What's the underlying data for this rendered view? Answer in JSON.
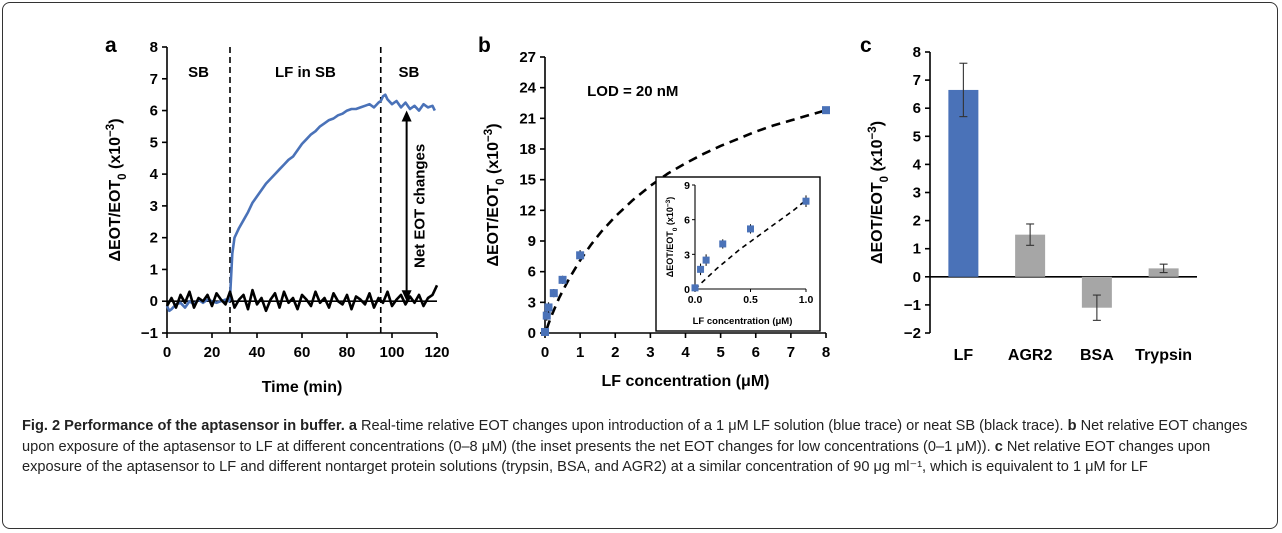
{
  "chart_data": [
    {
      "panel": "a",
      "type": "line",
      "xlabel": "Time (min)",
      "ylabel": "ΔEOT/EOT₀ (x10⁻³)",
      "xlim": [
        0,
        120
      ],
      "ylim": [
        -1,
        8
      ],
      "xticks": [
        0,
        20,
        40,
        60,
        80,
        100,
        120
      ],
      "yticks": [
        -1,
        0,
        1,
        2,
        3,
        4,
        5,
        6,
        7,
        8
      ],
      "regions": [
        "SB",
        "LF in SB",
        "SB"
      ],
      "region_boundaries": [
        28,
        95
      ],
      "annotation": "Net EOT changes",
      "series": [
        {
          "color": "#4a72b8",
          "x": [
            0,
            1,
            2,
            4,
            6,
            8,
            10,
            12,
            14,
            16,
            18,
            20,
            22,
            24,
            26,
            27.5,
            28,
            29,
            30,
            32,
            34,
            36,
            38,
            40,
            42,
            44,
            46,
            48,
            50,
            52,
            54,
            56,
            58,
            60,
            62,
            64,
            66,
            68,
            70,
            72,
            74,
            76,
            78,
            80,
            82,
            84,
            86,
            88,
            90,
            92,
            94,
            95,
            96,
            97,
            98,
            100,
            102,
            104,
            106,
            108,
            110,
            112,
            114,
            116,
            118,
            119
          ],
          "y": [
            -0.15,
            -0.3,
            -0.25,
            -0.1,
            -0.05,
            -0.2,
            0.0,
            -0.1,
            0.05,
            -0.05,
            0.05,
            0.0,
            -0.05,
            0.0,
            0.05,
            0.0,
            0.1,
            1.5,
            2.0,
            2.3,
            2.55,
            2.8,
            3.1,
            3.3,
            3.5,
            3.7,
            3.85,
            4.0,
            4.15,
            4.3,
            4.45,
            4.55,
            4.75,
            4.95,
            5.1,
            5.25,
            5.35,
            5.5,
            5.6,
            5.7,
            5.75,
            5.85,
            5.9,
            6.0,
            6.05,
            6.05,
            6.1,
            6.15,
            6.2,
            6.1,
            6.25,
            6.3,
            6.45,
            6.5,
            6.35,
            6.2,
            6.3,
            6.1,
            6.25,
            6.05,
            6.15,
            6.0,
            6.2,
            6.1,
            6.15,
            6.0
          ]
        },
        {
          "color": "#000000",
          "x": [
            0,
            2,
            4,
            6,
            8,
            10,
            12,
            14,
            16,
            18,
            20,
            22,
            24,
            26,
            28,
            30,
            32,
            34,
            36,
            38,
            40,
            42,
            44,
            46,
            48,
            50,
            52,
            54,
            56,
            58,
            60,
            62,
            64,
            66,
            68,
            70,
            72,
            74,
            76,
            78,
            80,
            82,
            84,
            86,
            88,
            90,
            92,
            94,
            96,
            98,
            100,
            102,
            104,
            106,
            108,
            110,
            112,
            114,
            116,
            118,
            120
          ],
          "y": [
            -0.15,
            0.1,
            -0.2,
            0.2,
            -0.05,
            0.3,
            -0.2,
            0.1,
            0.0,
            0.2,
            -0.15,
            0.25,
            0.05,
            -0.1,
            0.3,
            -0.2,
            0.05,
            0.2,
            -0.25,
            0.35,
            -0.1,
            0.1,
            -0.3,
            0.05,
            0.25,
            -0.2,
            0.3,
            -0.05,
            0.1,
            -0.25,
            0.2,
            0.05,
            -0.15,
            0.3,
            -0.05,
            0.1,
            -0.2,
            0.25,
            0.0,
            -0.1,
            0.2,
            -0.25,
            0.15,
            0.05,
            -0.1,
            0.25,
            -0.2,
            0.1,
            -0.05,
            0.3,
            -0.15,
            0.05,
            0.2,
            -0.1,
            0.15,
            -0.05,
            0.2,
            -0.15,
            0.1,
            0.2,
            0.5
          ]
        }
      ]
    },
    {
      "panel": "b",
      "type": "scatter",
      "xlabel": "LF concentration (μM)",
      "ylabel": "ΔEOT/EOT₀ (x10⁻³)",
      "xlim": [
        0,
        8
      ],
      "ylim": [
        0,
        27
      ],
      "xticks": [
        0,
        1,
        2,
        3,
        4,
        5,
        6,
        7,
        8
      ],
      "yticks": [
        0,
        3,
        6,
        9,
        12,
        15,
        18,
        21,
        24,
        27
      ],
      "annotation": "LOD = 20 nM",
      "marker_color": "#4a72b8",
      "points": {
        "x": [
          0.0,
          0.05,
          0.1,
          0.25,
          0.5,
          1.0,
          8.0
        ],
        "y": [
          0.1,
          1.7,
          2.5,
          3.9,
          5.2,
          7.6,
          21.8
        ],
        "err": [
          0.3,
          0.5,
          0.5,
          0.4,
          0.4,
          0.5,
          0.3
        ]
      },
      "fit": {
        "style": "dashed",
        "x": [
          0.05,
          0.1,
          0.2,
          0.3,
          0.4,
          0.5,
          0.7,
          1.0,
          1.3,
          1.6,
          2.0,
          2.5,
          3.0,
          3.5,
          4.0,
          4.5,
          5.0,
          5.5,
          6.0,
          6.5,
          7.0,
          7.5,
          8.0
        ],
        "y": [
          0.4,
          0.9,
          1.8,
          2.6,
          3.4,
          4.1,
          5.4,
          7.1,
          8.6,
          9.9,
          11.4,
          13.0,
          14.4,
          15.6,
          16.6,
          17.5,
          18.3,
          19.0,
          19.7,
          20.3,
          20.8,
          21.3,
          21.8
        ]
      },
      "inset": {
        "xlabel": "LF concentration (μM)",
        "ylabel": "ΔEOT/EOT₀ (x10⁻³)",
        "xlim": [
          0,
          1.0
        ],
        "ylim": [
          0,
          9
        ],
        "xticks": [
          "0.0",
          "0.5",
          "1.0"
        ],
        "yticks": [
          0,
          3,
          6,
          9
        ],
        "points": {
          "x": [
            0.0,
            0.05,
            0.1,
            0.25,
            0.5,
            1.0
          ],
          "y": [
            0.1,
            1.7,
            2.5,
            3.9,
            5.2,
            7.6
          ],
          "err": [
            0.3,
            0.5,
            0.5,
            0.4,
            0.4,
            0.5
          ]
        },
        "fit": {
          "x": [
            0.0,
            0.1,
            0.2,
            0.3,
            0.4,
            0.5,
            0.6,
            0.7,
            0.8,
            0.9,
            1.0
          ],
          "y": [
            0.0,
            0.9,
            1.8,
            2.6,
            3.4,
            4.1,
            4.8,
            5.5,
            6.2,
            6.9,
            7.7
          ]
        }
      }
    },
    {
      "panel": "c",
      "type": "bar",
      "categories": [
        "LF",
        "AGR2",
        "BSA",
        "Trypsin"
      ],
      "values": [
        6.65,
        1.5,
        -1.1,
        0.3
      ],
      "errors": [
        0.95,
        0.38,
        0.45,
        0.15
      ],
      "colors": [
        "#4a72b8",
        "#a6a6a6",
        "#a6a6a6",
        "#a6a6a6"
      ],
      "ylabel": "ΔEOT/EOT₀ (x10⁻³)",
      "ylim": [
        -2,
        8
      ],
      "yticks": [
        -2,
        -1,
        0,
        1,
        2,
        3,
        4,
        5,
        6,
        7,
        8
      ]
    }
  ],
  "caption": {
    "label": "Fig. 2 Performance of the aptasensor in buffer.",
    "a_tag": "a",
    "a_text": "Real-time relative EOT changes upon introduction of a 1 μM LF solution (blue trace) or neat SB (black trace).",
    "b_tag": "b",
    "b_text": "Net relative EOT changes upon exposure of the aptasensor to LF at different concentrations (0–8 μM) (the inset presents the net EOT changes for low concentrations (0–1 μM)).",
    "c_tag": "c",
    "c_text": "Net relative EOT changes upon exposure of the aptasensor to LF and different nontarget protein solutions (trypsin, BSA, and AGR2) at a similar concentration of 90 μg ml⁻¹, which is equivalent to 1 μM for LF"
  }
}
